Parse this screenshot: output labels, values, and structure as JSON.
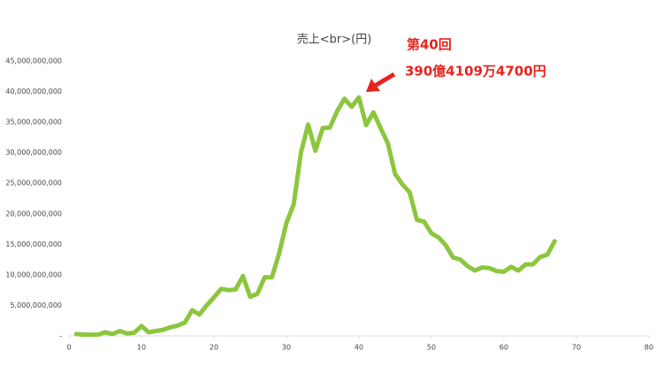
{
  "chart_data": {
    "type": "line",
    "title": "売上<br>(円)",
    "annotations": [
      "第40回",
      "390億4109万4700円"
    ],
    "color": "#8cc63e",
    "grid": false,
    "x": [
      1,
      2,
      3,
      4,
      5,
      6,
      7,
      8,
      9,
      10,
      11,
      12,
      13,
      14,
      15,
      16,
      17,
      18,
      19,
      20,
      21,
      22,
      23,
      24,
      25,
      26,
      27,
      28,
      29,
      30,
      31,
      32,
      33,
      34,
      35,
      36,
      37,
      38,
      39,
      40,
      41,
      42,
      43,
      44,
      45,
      46,
      47,
      48,
      49,
      50,
      51,
      52,
      53,
      54,
      55,
      56,
      57,
      58,
      59,
      60,
      61,
      62,
      63,
      64,
      65,
      66,
      67
    ],
    "values": [
      300000000,
      200000000,
      200000000,
      200000000,
      600000000,
      300000000,
      800000000,
      400000000,
      500000000,
      1600000000,
      600000000,
      800000000,
      1000000000,
      1400000000,
      1700000000,
      2200000000,
      4200000000,
      3500000000,
      5000000000,
      6300000000,
      7700000000,
      7500000000,
      7600000000,
      9800000000,
      6400000000,
      6900000000,
      9600000000,
      9600000000,
      13500000000,
      18500000000,
      21500000000,
      30000000000,
      34600000000,
      30300000000,
      34000000000,
      34100000000,
      36800000000,
      38800000000,
      37500000000,
      39041094700,
      34500000000,
      36600000000,
      34000000000,
      31500000000,
      26500000000,
      24800000000,
      23500000000,
      19000000000,
      18700000000,
      16800000000,
      16100000000,
      14800000000,
      12800000000,
      12500000000,
      11400000000,
      10700000000,
      11200000000,
      11100000000,
      10600000000,
      10500000000,
      11300000000,
      10700000000,
      11700000000,
      11700000000,
      12900000000,
      13300000000,
      15500000000
    ],
    "xlim": [
      0,
      80
    ],
    "xticks": [
      0,
      10,
      20,
      30,
      40,
      50,
      60,
      70,
      80
    ],
    "ylim": [
      0,
      45000000000
    ],
    "yticks": [
      {
        "value": 0,
        "label": "-"
      },
      {
        "value": 5000000000,
        "label": "5,000,000,000"
      },
      {
        "value": 10000000000,
        "label": "10,000,000,000"
      },
      {
        "value": 15000000000,
        "label": "15,000,000,000"
      },
      {
        "value": 20000000000,
        "label": "20,000,000,000"
      },
      {
        "value": 25000000000,
        "label": "25,000,000,000"
      },
      {
        "value": 30000000000,
        "label": "30,000,000,000"
      },
      {
        "value": 35000000000,
        "label": "35,000,000,000"
      },
      {
        "value": 40000000000,
        "label": "40,000,000,000"
      },
      {
        "value": 45000000000,
        "label": "45,000,000,000"
      }
    ]
  }
}
